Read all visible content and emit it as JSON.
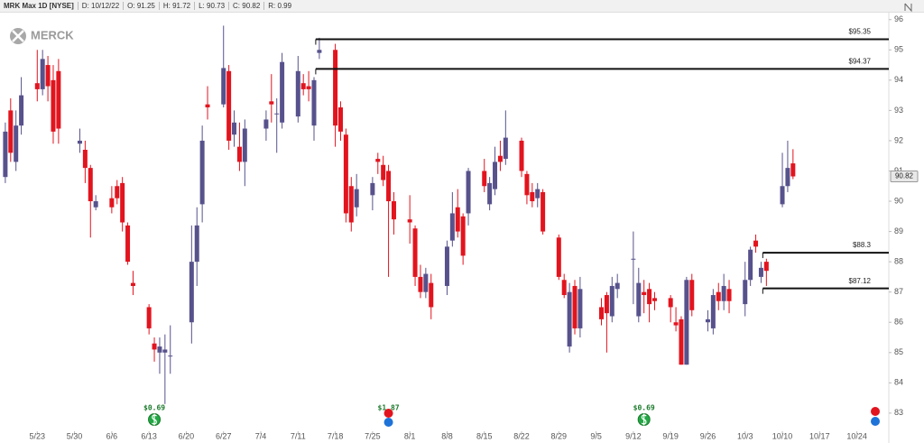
{
  "chart_data": {
    "type": "candlestick",
    "header": [
      "MRK Max 1D [NYSE]",
      "D: 10/12/22",
      "O: 91.25",
      "H: 91.72",
      "L: 90.73",
      "C: 90.82",
      "R: 0.99"
    ],
    "logo": "MERCK",
    "x": [
      "5/17",
      "5/18",
      "5/19",
      "5/20",
      "5/23",
      "5/24",
      "5/25",
      "5/26",
      "5/27",
      "5/31",
      "6/1",
      "6/2",
      "6/3",
      "6/6",
      "6/7",
      "6/8",
      "6/9",
      "6/10",
      "6/13",
      "6/14",
      "6/15",
      "6/16",
      "6/17",
      "6/21",
      "6/22",
      "6/23",
      "6/24",
      "6/27",
      "6/28",
      "6/29",
      "6/30",
      "7/1",
      "7/5",
      "7/6",
      "7/7",
      "7/8",
      "7/11",
      "7/12",
      "7/13",
      "7/14",
      "7/15",
      "7/18",
      "7/19",
      "7/20",
      "7/21",
      "7/22",
      "7/25",
      "7/26",
      "7/27",
      "7/28",
      "7/29",
      "8/1",
      "8/2",
      "8/3",
      "8/4",
      "8/5",
      "8/8",
      "8/9",
      "8/10",
      "8/11",
      "8/12",
      "8/15",
      "8/16",
      "8/17",
      "8/18",
      "8/19",
      "8/22",
      "8/23",
      "8/24",
      "8/25",
      "8/26",
      "8/29",
      "8/30",
      "8/31",
      "9/1",
      "9/2",
      "9/6",
      "9/7",
      "9/8",
      "9/9",
      "9/12",
      "9/13",
      "9/14",
      "9/15",
      "9/16",
      "9/19",
      "9/20",
      "9/21",
      "9/22",
      "9/23",
      "9/26",
      "9/27",
      "9/28",
      "9/29",
      "9/30",
      "10/3",
      "10/4",
      "10/5",
      "10/6",
      "10/7",
      "10/10",
      "10/11",
      "10/12"
    ],
    "open": [
      90.8,
      93.0,
      91.3,
      92.5,
      93.9,
      93.7,
      94.5,
      94.0,
      94.3,
      91.9,
      91.7,
      91.1,
      89.8,
      90.1,
      90.5,
      90.6,
      89.2,
      87.3,
      86.5,
      85.3,
      85.0,
      85.0,
      84.9,
      86.0,
      88.0,
      89.9,
      93.2,
      93.2,
      94.3,
      92.2,
      91.8,
      91.3,
      92.4,
      93.3,
      92.9,
      92.6,
      92.8,
      93.9,
      93.8,
      92.5,
      94.9,
      95.0,
      93.1,
      92.2,
      90.5,
      89.8,
      90.2,
      91.4,
      91.2,
      91.0,
      90.0,
      89.4,
      89.1,
      87.5,
      87.0,
      87.3,
      87.2,
      88.7,
      89.8,
      89.5,
      89.6,
      91.0,
      89.9,
      90.4,
      91.5,
      91.4,
      92.0,
      90.9,
      90.3,
      90.1,
      90.3,
      88.8,
      87.4,
      85.2,
      87.2,
      85.8,
      86.5,
      86.9,
      86.2,
      87.1,
      88.1,
      86.2,
      87.0,
      87.1,
      86.8,
      86.8,
      86.0,
      86.1,
      84.6,
      87.4,
      86.0,
      85.8,
      87.0,
      86.7,
      87.1,
      86.6,
      87.4,
      88.7,
      87.5,
      88.0,
      89.9,
      90.5,
      91.25
    ],
    "high": [
      92.6,
      93.4,
      93.0,
      94.1,
      95.0,
      95.0,
      94.8,
      94.5,
      94.7,
      92.4,
      92.0,
      91.2,
      90.2,
      90.5,
      90.7,
      90.8,
      89.3,
      87.7,
      86.6,
      85.5,
      85.5,
      85.6,
      85.9,
      89.2,
      89.8,
      92.5,
      93.8,
      95.8,
      94.5,
      93.0,
      92.6,
      92.7,
      93.0,
      94.2,
      93.4,
      94.9,
      94.8,
      94.2,
      94.3,
      94.1,
      95.4,
      95.2,
      93.3,
      92.4,
      90.8,
      90.9,
      90.8,
      91.6,
      91.5,
      91.2,
      90.3,
      90.2,
      89.2,
      87.9,
      87.8,
      87.6,
      88.7,
      90.3,
      90.4,
      89.6,
      91.1,
      91.4,
      90.8,
      91.8,
      92.0,
      93.0,
      92.1,
      91.0,
      90.6,
      90.6,
      90.4,
      88.9,
      87.6,
      87.3,
      87.4,
      87.5,
      86.8,
      87.0,
      87.5,
      87.6,
      89.0,
      87.8,
      87.4,
      87.3,
      87.0,
      86.9,
      86.5,
      86.2,
      87.5,
      87.6,
      86.4,
      87.1,
      87.3,
      87.6,
      87.4,
      88.0,
      88.5,
      88.9,
      88.0,
      88.1,
      91.6,
      92.0,
      91.72
    ],
    "low": [
      90.6,
      91.3,
      91.0,
      92.2,
      93.3,
      93.5,
      93.3,
      91.9,
      91.9,
      91.6,
      90.6,
      88.8,
      89.7,
      89.6,
      89.9,
      89.0,
      87.9,
      86.9,
      85.6,
      84.7,
      84.3,
      83.3,
      84.3,
      85.3,
      87.2,
      89.3,
      92.7,
      93.1,
      91.7,
      91.8,
      91.0,
      90.5,
      92.0,
      92.6,
      91.6,
      92.4,
      92.6,
      93.5,
      93.3,
      92.0,
      94.7,
      91.8,
      92.0,
      89.3,
      89.0,
      89.5,
      89.7,
      90.9,
      90.5,
      87.5,
      88.9,
      88.6,
      87.2,
      86.8,
      86.8,
      86.1,
      86.9,
      88.5,
      88.8,
      87.9,
      89.2,
      90.3,
      89.7,
      90.2,
      91.0,
      91.2,
      90.8,
      89.9,
      89.8,
      89.8,
      88.9,
      87.4,
      86.8,
      85.0,
      85.6,
      85.5,
      85.9,
      85.0,
      86.0,
      86.8,
      86.6,
      86.0,
      86.3,
      86.0,
      86.4,
      86.0,
      85.7,
      84.6,
      84.6,
      86.2,
      85.7,
      85.6,
      86.4,
      86.4,
      86.3,
      86.2,
      87.2,
      88.3,
      87.3,
      87.2,
      89.8,
      90.3,
      90.73
    ],
    "close": [
      92.3,
      91.6,
      92.5,
      93.5,
      93.7,
      94.7,
      93.8,
      92.3,
      92.4,
      92.0,
      91.1,
      90.0,
      90.0,
      89.8,
      90.1,
      89.3,
      88.0,
      87.2,
      85.8,
      85.1,
      85.2,
      85.1,
      84.9,
      88.0,
      89.2,
      92.0,
      93.1,
      94.4,
      92.0,
      92.6,
      91.3,
      92.4,
      92.7,
      93.2,
      92.9,
      94.6,
      94.3,
      93.7,
      93.7,
      94.0,
      95.0,
      92.5,
      92.3,
      89.6,
      89.3,
      90.4,
      90.6,
      91.3,
      90.7,
      90.0,
      89.4,
      89.3,
      87.5,
      87.0,
      87.6,
      86.5,
      88.5,
      89.6,
      89.0,
      88.2,
      91.0,
      90.5,
      90.6,
      91.3,
      91.3,
      92.1,
      91.0,
      90.2,
      90.0,
      90.4,
      89.0,
      87.5,
      86.9,
      87.0,
      85.8,
      87.1,
      86.1,
      86.3,
      87.2,
      87.3,
      88.1,
      87.3,
      86.9,
      86.6,
      86.7,
      86.5,
      85.9,
      84.6,
      87.4,
      86.4,
      86.1,
      86.9,
      86.7,
      87.2,
      86.7,
      87.4,
      88.4,
      88.5,
      87.8,
      87.7,
      90.5,
      91.1,
      90.82
    ],
    "up_color": "#57528c",
    "down_color": "#e2141e",
    "xlim": [
      "5/16",
      "10/30"
    ],
    "xticks": [
      "5/23",
      "5/30",
      "6/6",
      "6/13",
      "6/20",
      "6/27",
      "7/4",
      "7/11",
      "7/18",
      "7/25",
      "8/1",
      "8/8",
      "8/15",
      "8/22",
      "8/29",
      "9/5",
      "9/12",
      "9/19",
      "9/26",
      "10/3",
      "10/10",
      "10/17",
      "10/24"
    ],
    "ylim": [
      82.4,
      96.35
    ],
    "yticks": [
      83,
      84,
      85,
      86,
      87,
      88,
      89,
      90,
      91,
      92,
      93,
      94,
      95,
      96
    ],
    "levels": [
      {
        "value": 95.35,
        "label": "$95.35",
        "from": "7/15"
      },
      {
        "value": 94.37,
        "label": "$94.37",
        "from": "7/15"
      },
      {
        "value": 88.3,
        "label": "$88.3",
        "from": "10/7"
      },
      {
        "value": 87.12,
        "label": "$87.12",
        "from": "10/7"
      }
    ],
    "events": [
      {
        "date": "6/14",
        "label": "$0.69",
        "kind": "dividend"
      },
      {
        "date": "7/28",
        "label": "$1.87",
        "kind": "earnings"
      },
      {
        "date": "9/14",
        "label": "$0.69",
        "kind": "dividend"
      }
    ]
  }
}
